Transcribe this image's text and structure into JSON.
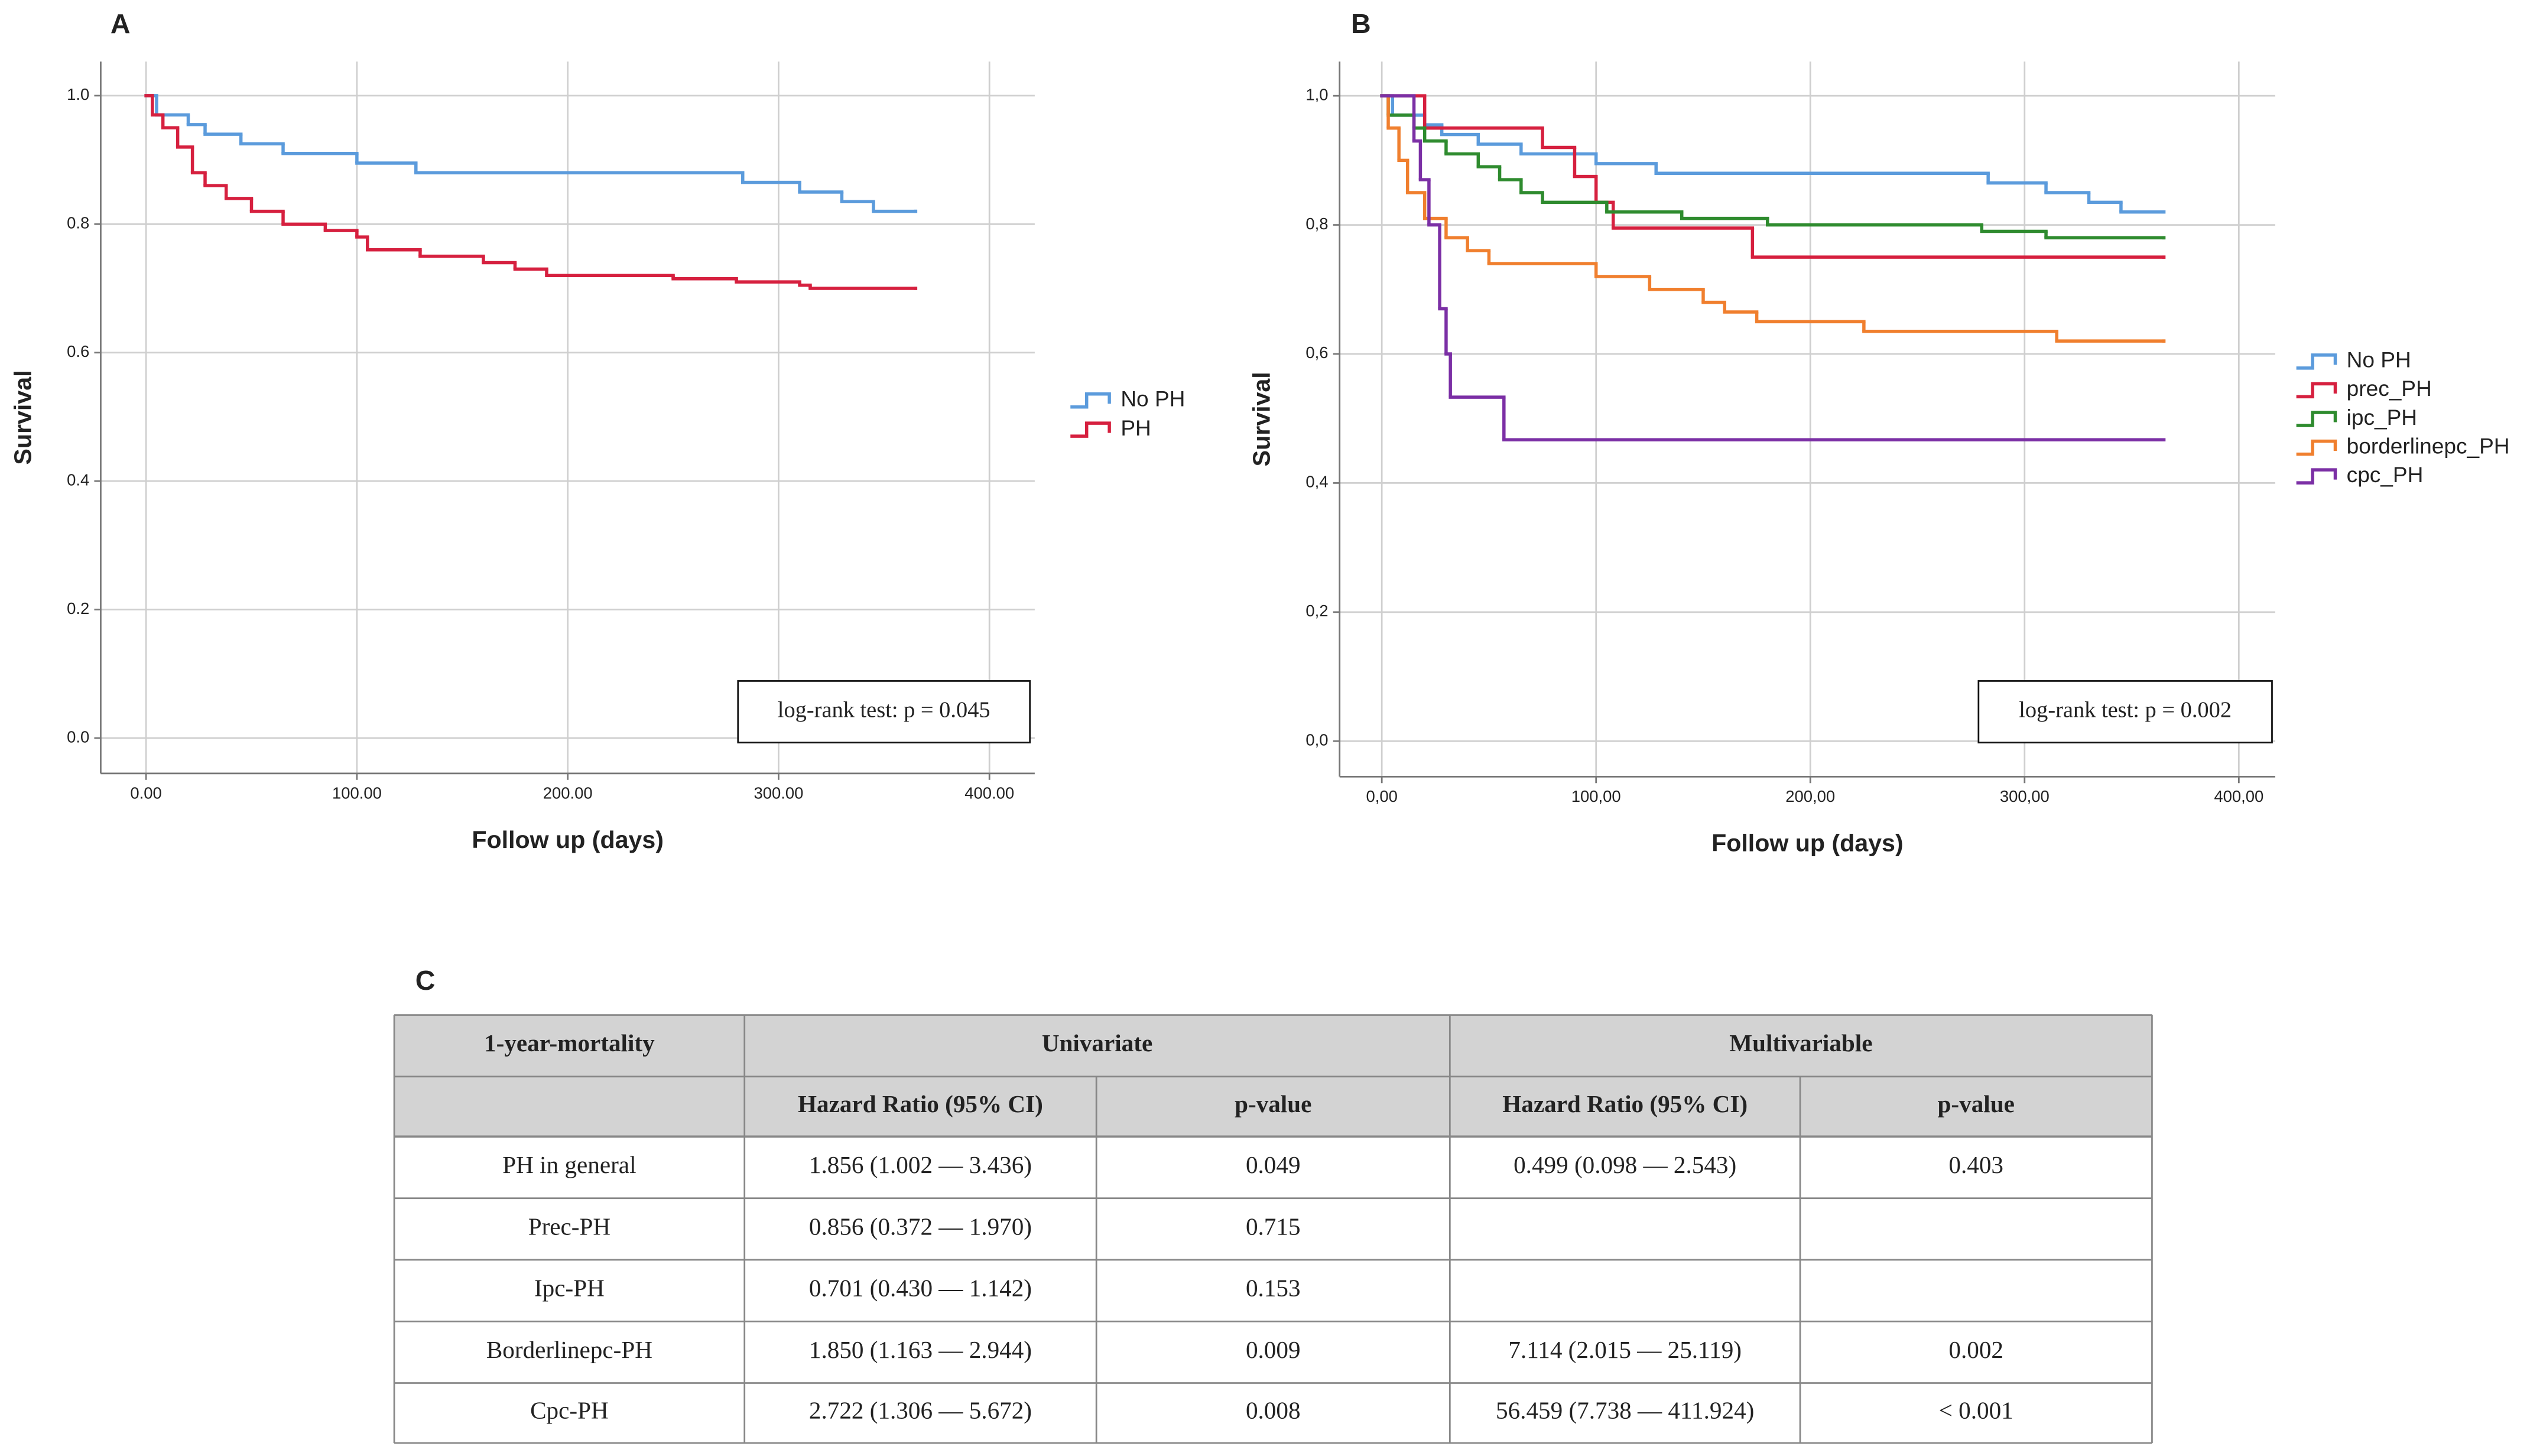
{
  "chart_data": [
    {
      "type": "step",
      "panel_label": "A",
      "ylabel": "Survival",
      "xlabel": "Follow up (days)",
      "annotation": "log-rank test: p = 0.045",
      "legend": "right",
      "grid": true,
      "xlim": [
        -21.5,
        421.5
      ],
      "ylim": [
        -0.055,
        1.053
      ],
      "xticks": [
        {
          "value": 0,
          "label": "0.00"
        },
        {
          "value": 100,
          "label": "100.00"
        },
        {
          "value": 200,
          "label": "200.00"
        },
        {
          "value": 300,
          "label": "300.00"
        },
        {
          "value": 400,
          "label": "400.00"
        }
      ],
      "yticks": [
        {
          "value": 0,
          "label": "0.0"
        },
        {
          "value": 0.2,
          "label": "0.2"
        },
        {
          "value": 0.4,
          "label": "0.4"
        },
        {
          "value": 0.6,
          "label": "0.6"
        },
        {
          "value": 0.8,
          "label": "0.8"
        },
        {
          "value": 1,
          "label": "1.0"
        }
      ],
      "series": [
        {
          "name": "No PH",
          "color": "#5b9bdc",
          "x": [
            0,
            5,
            20,
            28,
            45,
            65,
            100,
            128,
            283,
            310,
            330,
            345,
            365
          ],
          "values": [
            1.0,
            0.97,
            0.955,
            0.94,
            0.925,
            0.91,
            0.895,
            0.88,
            0.865,
            0.85,
            0.835,
            0.82,
            0.82
          ]
        },
        {
          "name": "PH",
          "color": "#d6203f",
          "x": [
            0,
            3,
            8,
            15,
            22,
            28,
            38,
            50,
            65,
            85,
            100,
            105,
            130,
            160,
            175,
            190,
            250,
            280,
            310,
            315,
            365
          ],
          "values": [
            1.0,
            0.97,
            0.95,
            0.92,
            0.88,
            0.86,
            0.84,
            0.82,
            0.8,
            0.79,
            0.78,
            0.76,
            0.75,
            0.74,
            0.73,
            0.72,
            0.715,
            0.71,
            0.705,
            0.7,
            0.7
          ]
        }
      ]
    },
    {
      "type": "step",
      "panel_label": "B",
      "ylabel": "Survival",
      "xlabel": "Follow up (days)",
      "annotation": "log-rank test: p = 0.002",
      "legend": "right",
      "grid": true,
      "xlim": [
        -19.7,
        417
      ],
      "ylim": [
        -0.055,
        1.053
      ],
      "xticks": [
        {
          "value": 0,
          "label": "0,00"
        },
        {
          "value": 100,
          "label": "100,00"
        },
        {
          "value": 200,
          "label": "200,00"
        },
        {
          "value": 300,
          "label": "300,00"
        },
        {
          "value": 400,
          "label": "400,00"
        }
      ],
      "yticks": [
        {
          "value": 0,
          "label": "0,0"
        },
        {
          "value": 0.2,
          "label": "0,2"
        },
        {
          "value": 0.4,
          "label": "0,4"
        },
        {
          "value": 0.6,
          "label": "0,6"
        },
        {
          "value": 0.8,
          "label": "0,8"
        },
        {
          "value": 1,
          "label": "1,0"
        }
      ],
      "series": [
        {
          "name": "No PH",
          "color": "#5b9bdc",
          "x": [
            0,
            5,
            20,
            28,
            45,
            65,
            100,
            128,
            283,
            310,
            330,
            345,
            365
          ],
          "values": [
            1.0,
            0.97,
            0.955,
            0.94,
            0.925,
            0.91,
            0.895,
            0.88,
            0.865,
            0.85,
            0.835,
            0.82,
            0.82
          ]
        },
        {
          "name": "prec_PH",
          "color": "#d6203f",
          "x": [
            0,
            20,
            75,
            90,
            100,
            108,
            173,
            365
          ],
          "values": [
            1.0,
            0.95,
            0.92,
            0.875,
            0.835,
            0.795,
            0.75,
            0.75
          ]
        },
        {
          "name": "ipc_PH",
          "color": "#2e8b2e",
          "x": [
            0,
            3,
            15,
            20,
            30,
            45,
            55,
            65,
            75,
            105,
            140,
            180,
            280,
            310,
            365
          ],
          "values": [
            1.0,
            0.97,
            0.95,
            0.93,
            0.91,
            0.89,
            0.87,
            0.85,
            0.835,
            0.82,
            0.81,
            0.8,
            0.79,
            0.78,
            0.78
          ]
        },
        {
          "name": "borderlinepc_PH",
          "color": "#f07f2e",
          "x": [
            0,
            3,
            8,
            12,
            20,
            30,
            40,
            50,
            100,
            125,
            150,
            160,
            175,
            225,
            315,
            365
          ],
          "values": [
            1.0,
            0.95,
            0.9,
            0.85,
            0.81,
            0.78,
            0.76,
            0.74,
            0.72,
            0.7,
            0.68,
            0.665,
            0.65,
            0.635,
            0.62,
            0.62
          ]
        },
        {
          "name": "cpc_PH",
          "color": "#7b2fa5",
          "x": [
            0,
            15,
            18,
            22,
            27,
            30,
            32,
            57,
            365
          ],
          "values": [
            1.0,
            0.93,
            0.87,
            0.8,
            0.67,
            0.6,
            0.533,
            0.467,
            0.467
          ]
        }
      ]
    }
  ],
  "table": {
    "label": "C",
    "header": {
      "row1": [
        "1-year-mortality",
        "Univariate",
        "Multivariable"
      ],
      "row2": [
        null,
        "Hazard Ratio (95% CI)",
        "p-value",
        "Hazard Ratio (95% CI)",
        "p-value"
      ]
    },
    "rows": [
      [
        "PH in general",
        "1.856 (1.002 — 3.436)",
        "0.049",
        "0.499 (0.098 — 2.543)",
        "0.403"
      ],
      [
        "Prec-PH",
        "0.856 (0.372 — 1.970)",
        "0.715",
        null,
        null
      ],
      [
        "Ipc-PH",
        "0.701 (0.430 — 1.142)",
        "0.153",
        null,
        null
      ],
      [
        "Borderlinepc-PH",
        "1.850 (1.163 — 2.944)",
        "0.009",
        "7.114 (2.015 — 25.119)",
        "0.002"
      ],
      [
        "Cpc-PH",
        "2.722 (1.306 — 5.672)",
        "0.008",
        "56.459 (7.738 — 411.924)",
        "< 0.001"
      ]
    ]
  }
}
